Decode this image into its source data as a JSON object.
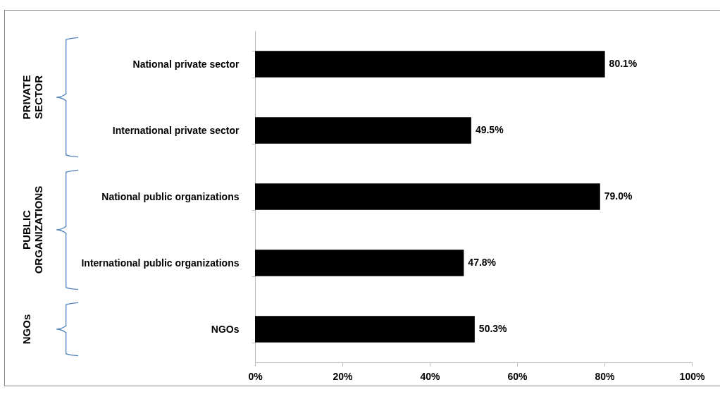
{
  "chart_data": {
    "type": "bar",
    "orientation": "horizontal",
    "categories": [
      "National private sector",
      "International private sector",
      "National public organizations",
      "International public organizations",
      "NGOs"
    ],
    "values": [
      80.1,
      49.5,
      79.0,
      47.8,
      50.3
    ],
    "value_labels": [
      "80.1%",
      "49.5%",
      "79.0%",
      "47.8%",
      "50.3%"
    ],
    "color": "#000000",
    "xlim": [
      0,
      100
    ],
    "xticks": [
      {
        "value": 0,
        "label": "0%"
      },
      {
        "value": 20,
        "label": "20%"
      },
      {
        "value": 40,
        "label": "40%"
      },
      {
        "value": 60,
        "label": "60%"
      },
      {
        "value": 80,
        "label": "80%"
      },
      {
        "value": 100,
        "label": "100%"
      }
    ],
    "annotations": [
      "PRIVATE SECTOR",
      "PUBLIC ORGANIZATIONS",
      "NGOs"
    ],
    "grid": false
  }
}
